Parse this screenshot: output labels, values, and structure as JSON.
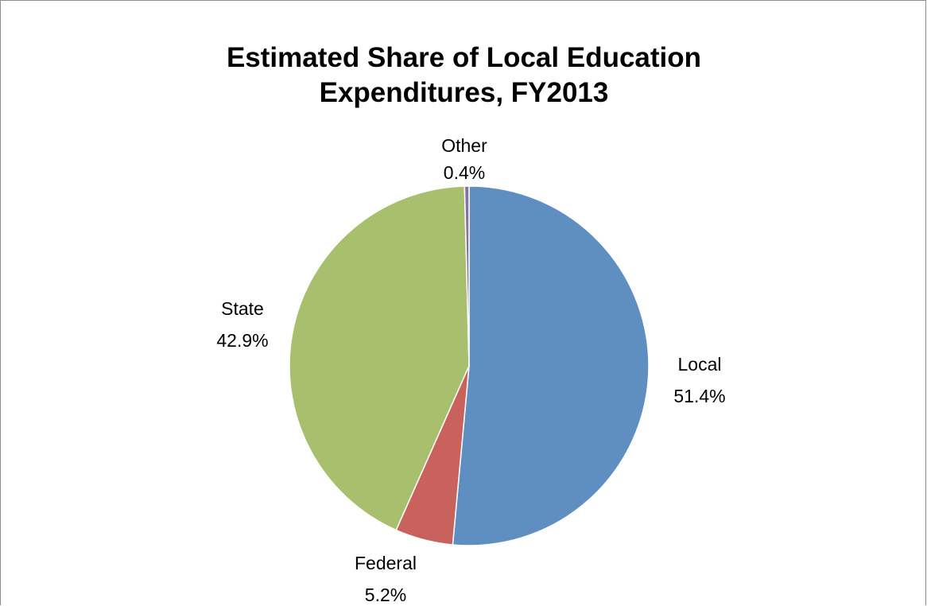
{
  "chart_data": {
    "type": "pie",
    "title": "Estimated Share of Local Education Expenditures, FY2013",
    "title_lines": [
      "Estimated Share of Local Education",
      "Expenditures, FY2013"
    ],
    "slices": [
      {
        "name": "Local",
        "value": 51.4,
        "label": "51.4%",
        "color": "#5f8fc1"
      },
      {
        "name": "Federal",
        "value": 5.2,
        "label": "5.2%",
        "color": "#c9625d"
      },
      {
        "name": "State",
        "value": 42.9,
        "label": "42.9%",
        "color": "#a8bf6d"
      },
      {
        "name": "Other",
        "value": 0.4,
        "label": "0.4%",
        "color": "#8b6fa8"
      }
    ],
    "start_angle": "12 o'clock",
    "direction": "clockwise",
    "legend": "none",
    "data_labels": "category name and percentage, outside slices"
  }
}
